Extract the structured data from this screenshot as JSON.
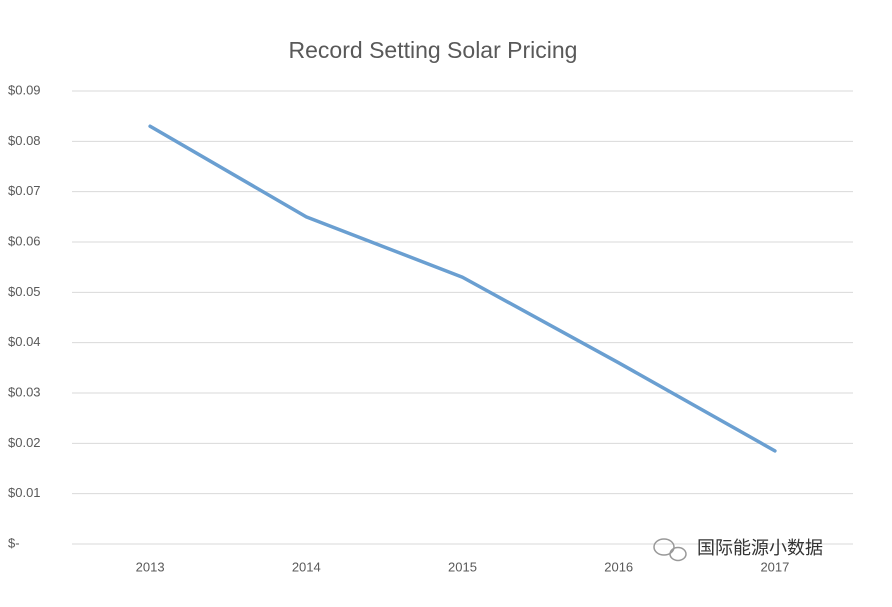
{
  "chart_data": {
    "type": "line",
    "title": "Record Setting Solar Pricing",
    "categories": [
      "2013",
      "2014",
      "2015",
      "2016",
      "2017"
    ],
    "values": [
      0.083,
      0.065,
      0.053,
      0.036,
      0.0185
    ],
    "color": "#6a9fd1",
    "ylim": [
      0,
      0.09
    ],
    "yticks": [
      {
        "value": 0,
        "label": "$-"
      },
      {
        "value": 0.01,
        "label": "$0.01"
      },
      {
        "value": 0.02,
        "label": "$0.02"
      },
      {
        "value": 0.03,
        "label": "$0.03"
      },
      {
        "value": 0.04,
        "label": "$0.04"
      },
      {
        "value": 0.05,
        "label": "$0.05"
      },
      {
        "value": 0.06,
        "label": "$0.06"
      },
      {
        "value": 0.07,
        "label": "$0.07"
      },
      {
        "value": 0.08,
        "label": "$0.08"
      },
      {
        "value": 0.09,
        "label": "$0.09"
      }
    ],
    "grid": true,
    "watermark": "国际能源小数据"
  }
}
